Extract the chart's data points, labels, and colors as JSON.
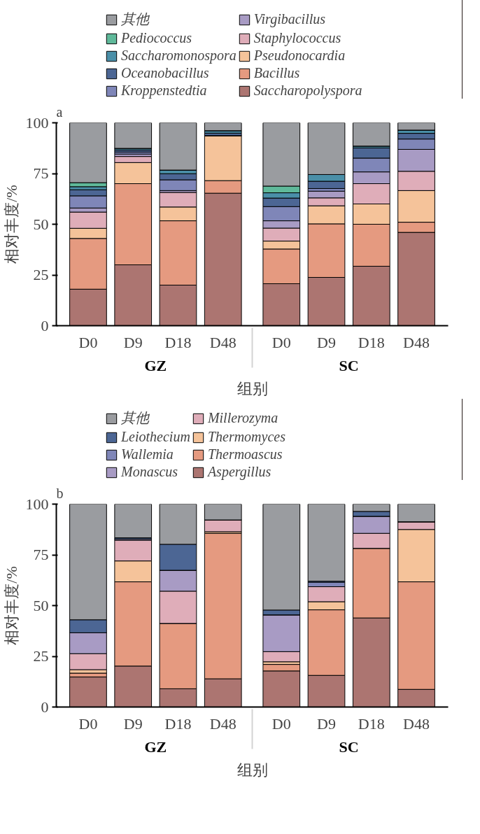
{
  "chart_data": [
    {
      "type": "bar",
      "title": "a",
      "stacked": true,
      "xlabel": "组别",
      "ylabel": "相对丰度/%",
      "ylim": [
        0,
        100
      ],
      "yticks": [
        0,
        25,
        50,
        75,
        100
      ],
      "legend": "top left",
      "categories": [
        "D0",
        "D9",
        "D18",
        "D48",
        "D0",
        "D9",
        "D18",
        "D48"
      ],
      "annotations": [
        "GZ",
        "SC"
      ],
      "series": [
        {
          "name": "Saccharopolyspora",
          "color": "#ac7571",
          "values": [
            18,
            30,
            20,
            65.3,
            20.7,
            23.8,
            29.3,
            46
          ]
        },
        {
          "name": "Bacillus",
          "color": "#e59a80",
          "values": [
            25,
            40,
            31.7,
            6.2,
            17.1,
            26.4,
            20.7,
            5
          ]
        },
        {
          "name": "Pseudonocardia",
          "color": "#f5c39a",
          "values": [
            5,
            10.4,
            6.8,
            22.2,
            3.9,
            8.9,
            10,
            15.6
          ]
        },
        {
          "name": "Staphylococcus",
          "color": "#dfadb9",
          "values": [
            8,
            3,
            7.2,
            null,
            6.4,
            3.9,
            10,
            9.5
          ]
        },
        {
          "name": "Virgibacillus",
          "color": "#a89bc4",
          "values": [
            2,
            1.2,
            0.9,
            null,
            3.6,
            3.3,
            5.8,
            10.8
          ]
        },
        {
          "name": "Kroppenstedtia",
          "color": "#7f86b8",
          "values": [
            6,
            1,
            5.3,
            null,
            7,
            1.3,
            6.8,
            5.1
          ]
        },
        {
          "name": "Oceanobacillus",
          "color": "#4c6694",
          "values": [
            3,
            1,
            3,
            1.2,
            4.2,
            3.6,
            5,
            2.8
          ]
        },
        {
          "name": "Saccharomonospora",
          "color": "#4a8fa8",
          "values": [
            1.5,
            0.8,
            1.8,
            1.2,
            2.6,
            3.3,
            0.9,
            1.6
          ]
        },
        {
          "name": "Pediococcus",
          "color": "#5fb99a",
          "values": [
            2,
            0,
            0,
            0,
            3.3,
            0,
            0,
            0
          ]
        },
        {
          "name": "其他",
          "color": "#9a9ca0",
          "values": [
            29.5,
            12.6,
            23.3,
            3.9,
            31.2,
            25.5,
            11.5,
            3.6
          ]
        }
      ]
    },
    {
      "type": "bar",
      "title": "b",
      "stacked": true,
      "xlabel": "组别",
      "ylabel": "相对丰度/%",
      "ylim": [
        0,
        100
      ],
      "yticks": [
        0,
        25,
        50,
        75,
        100
      ],
      "legend": "top left",
      "categories": [
        "D0",
        "D9",
        "D18",
        "D48",
        "D0",
        "D9",
        "D18",
        "D48"
      ],
      "annotations": [
        "GZ",
        "SC"
      ],
      "series": [
        {
          "name": "Aspergillus",
          "color": "#ac7571",
          "values": [
            14.8,
            20.2,
            9,
            13.9,
            17.8,
            15.6,
            43.9,
            8.7
          ]
        },
        {
          "name": "Thermoascus",
          "color": "#e59a80",
          "values": [
            1.9,
            41.5,
            32.2,
            71.7,
            3.2,
            32.3,
            34.3,
            53
          ]
        },
        {
          "name": "Thermomyces",
          "color": "#f5c39a",
          "values": [
            1.7,
            10.3,
            0,
            0.8,
            1.3,
            4,
            0,
            25.8
          ]
        },
        {
          "name": "Millerozyma",
          "color": "#dfadb9",
          "values": [
            7.9,
            10.2,
            15.9,
            5.8,
            5,
            7.4,
            7.4,
            3.8
          ]
        },
        {
          "name": "Monascus",
          "color": "#a89bc4",
          "values": [
            10.3,
            0.6,
            10.3,
            0,
            18.1,
            0,
            8.4,
            0
          ]
        },
        {
          "name": "Wallemia",
          "color": "#7f86b8",
          "values": [
            0,
            0,
            0,
            0,
            0,
            2.2,
            0,
            0
          ]
        },
        {
          "name": "Leiothecium",
          "color": "#4c6694",
          "values": [
            6.4,
            0.6,
            12.8,
            0,
            2.4,
            0.5,
            2.4,
            0
          ]
        },
        {
          "name": "其他",
          "color": "#9a9ca0",
          "values": [
            57,
            16.6,
            19.8,
            7.8,
            52.2,
            38,
            3.6,
            8.7
          ]
        }
      ]
    }
  ]
}
